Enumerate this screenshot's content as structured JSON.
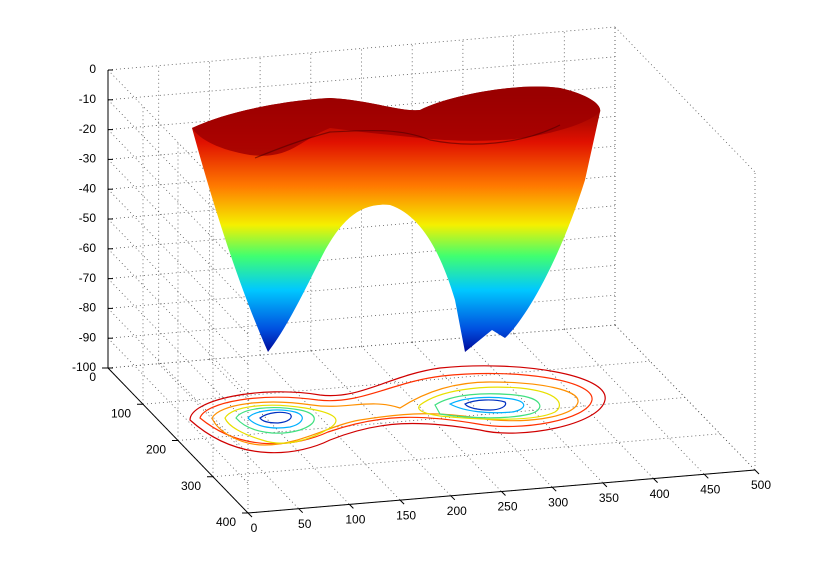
{
  "chart_data": {
    "type": "surface",
    "xlim": [
      0,
      500
    ],
    "xticks": [
      0,
      50,
      100,
      150,
      200,
      250,
      300,
      350,
      400,
      450,
      500
    ],
    "ylim": [
      0,
      400
    ],
    "yticks": [
      0,
      100,
      200,
      300,
      400
    ],
    "zlim": [
      -100,
      0
    ],
    "zticks": [
      0,
      -10,
      -20,
      -30,
      -40,
      -50,
      -60,
      -70,
      -80,
      -90,
      -100
    ],
    "grid": true
  }
}
